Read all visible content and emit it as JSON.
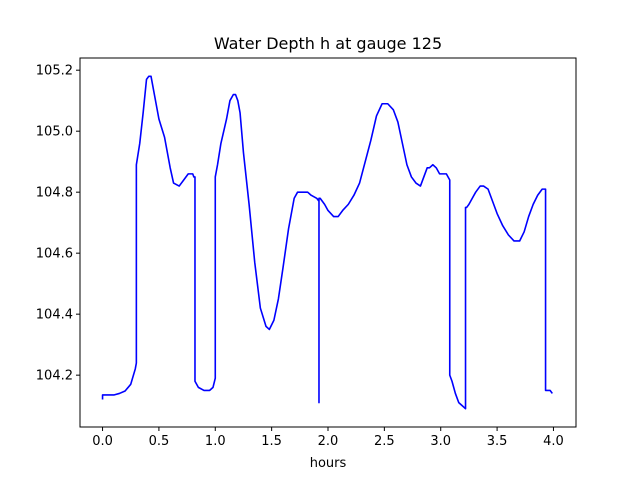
{
  "chart_data": {
    "type": "line",
    "title": "Water Depth h at gauge 125",
    "xlabel": "hours",
    "ylabel": "",
    "xlim": [
      -0.2,
      4.2
    ],
    "ylim": [
      104.03,
      105.24
    ],
    "xticks": [
      0.0,
      0.5,
      1.0,
      1.5,
      2.0,
      2.5,
      3.0,
      3.5,
      4.0
    ],
    "xtick_labels": [
      "0.0",
      "0.5",
      "1.0",
      "1.5",
      "2.0",
      "2.5",
      "3.0",
      "3.5",
      "4.0"
    ],
    "yticks": [
      104.2,
      104.4,
      104.6,
      104.8,
      105.0,
      105.2
    ],
    "ytick_labels": [
      "104.2",
      "104.4",
      "104.6",
      "104.8",
      "105.0",
      "105.2"
    ],
    "grid": false,
    "series": [
      {
        "color": "#0000ff",
        "x": [
          0.0,
          0.0,
          0.05,
          0.1,
          0.15,
          0.2,
          0.25,
          0.29,
          0.3,
          0.3,
          0.33,
          0.36,
          0.39,
          0.41,
          0.43,
          0.46,
          0.5,
          0.55,
          0.6,
          0.63,
          0.68,
          0.72,
          0.76,
          0.8,
          0.81,
          0.82,
          0.82,
          0.85,
          0.9,
          0.95,
          0.98,
          1.0,
          1.0,
          1.02,
          1.05,
          1.1,
          1.13,
          1.16,
          1.18,
          1.2,
          1.22,
          1.25,
          1.3,
          1.35,
          1.4,
          1.45,
          1.48,
          1.52,
          1.56,
          1.6,
          1.65,
          1.7,
          1.73,
          1.78,
          1.82,
          1.85,
          1.9,
          1.92,
          1.92,
          1.92,
          1.93,
          1.97,
          2.0,
          2.05,
          2.09,
          2.13,
          2.18,
          2.23,
          2.28,
          2.33,
          2.38,
          2.43,
          2.48,
          2.53,
          2.58,
          2.62,
          2.66,
          2.7,
          2.74,
          2.78,
          2.82,
          2.85,
          2.88,
          2.9,
          2.93,
          2.96,
          2.99,
          3.01,
          3.03,
          3.05,
          3.08,
          3.08,
          3.1,
          3.13,
          3.16,
          3.19,
          3.22,
          3.22,
          3.23,
          3.25,
          3.28,
          3.31,
          3.35,
          3.38,
          3.42,
          3.45,
          3.5,
          3.55,
          3.6,
          3.65,
          3.7,
          3.74,
          3.78,
          3.82,
          3.86,
          3.9,
          3.93,
          3.93,
          3.94,
          3.97,
          3.99
        ],
        "y": [
          104.12,
          104.135,
          104.135,
          104.135,
          104.14,
          104.148,
          104.17,
          104.22,
          104.24,
          104.89,
          104.96,
          105.06,
          105.17,
          105.18,
          105.18,
          105.12,
          105.04,
          104.98,
          104.88,
          104.83,
          104.82,
          104.84,
          104.86,
          104.86,
          104.85,
          104.85,
          104.18,
          104.16,
          104.15,
          104.15,
          104.16,
          104.19,
          104.85,
          104.89,
          104.96,
          105.04,
          105.1,
          105.12,
          105.12,
          105.1,
          105.06,
          104.93,
          104.76,
          104.57,
          104.42,
          104.36,
          104.35,
          104.38,
          104.45,
          104.55,
          104.68,
          104.78,
          104.8,
          104.8,
          104.8,
          104.79,
          104.78,
          104.77,
          104.11,
          104.78,
          104.78,
          104.76,
          104.74,
          104.72,
          104.72,
          104.74,
          104.76,
          104.79,
          104.83,
          104.9,
          104.97,
          105.05,
          105.09,
          105.09,
          105.07,
          105.03,
          104.96,
          104.89,
          104.85,
          104.83,
          104.82,
          104.85,
          104.88,
          104.88,
          104.89,
          104.88,
          104.86,
          104.86,
          104.86,
          104.86,
          104.84,
          104.2,
          104.18,
          104.14,
          104.11,
          104.1,
          104.09,
          104.75,
          104.75,
          104.76,
          104.78,
          104.8,
          104.82,
          104.82,
          104.81,
          104.78,
          104.73,
          104.69,
          104.66,
          104.64,
          104.64,
          104.67,
          104.72,
          104.76,
          104.79,
          104.81,
          104.81,
          104.15,
          104.15,
          104.15,
          104.14
        ]
      }
    ]
  }
}
